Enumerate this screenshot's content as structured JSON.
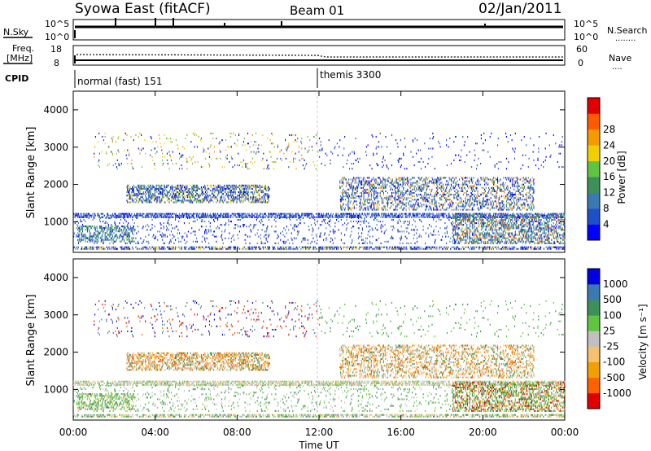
{
  "header": {
    "station": "Syowa East (fitACF)",
    "beam": "Beam 01",
    "date": "02/Jan/2011"
  },
  "strip_panels": {
    "nsky": {
      "label": "N.Sky",
      "ticks": [
        "10^5",
        "10^0"
      ]
    },
    "nsearch": {
      "label": "N.Search",
      "ticks": [
        "10^5",
        "10^0"
      ],
      "legend_line": "........"
    },
    "freq": {
      "label": "Freq.",
      "unit": "[MHz]",
      "ticks": [
        "18",
        "8"
      ]
    },
    "nave": {
      "label": "Nave",
      "ticks": [
        "60",
        "0"
      ],
      "legend_line": "...."
    },
    "cpid": {
      "label": "CPID",
      "modes": [
        "normal (fast) 151",
        "themis 3300"
      ]
    }
  },
  "chart_data": [
    {
      "type": "heatmap",
      "name": "power",
      "ylabel": "Slant Range [km]",
      "y_ticks": [
        "1000",
        "2000",
        "3000",
        "4000"
      ],
      "ylim": [
        180,
        4500
      ],
      "xlim": [
        0,
        24
      ],
      "colorbar": {
        "label": "Power [dB]",
        "ticks": [
          "4",
          "8",
          "12",
          "16",
          "20",
          "24",
          "28"
        ],
        "colors": [
          "#0000ff",
          "#2050c8",
          "#3a7ab0",
          "#3e8f5a",
          "#60c440",
          "#f0d000",
          "#f59a00",
          "#ff5a00",
          "#e00000"
        ]
      },
      "bands": [
        {
          "t0": 0.0,
          "t1": 24.0,
          "r0": 250,
          "r1": 330,
          "density": 0.55,
          "levels": [
            0,
            1,
            2,
            5
          ]
        },
        {
          "t0": 0.0,
          "t1": 24.0,
          "r0": 1100,
          "r1": 1220,
          "density": 0.55,
          "levels": [
            0,
            1,
            2
          ]
        },
        {
          "t0": 2.6,
          "t1": 9.6,
          "r0": 1500,
          "r1": 2000,
          "density": 0.45,
          "levels": [
            0,
            1,
            2,
            3,
            5
          ]
        },
        {
          "t0": 0.2,
          "t1": 3.0,
          "r0": 450,
          "r1": 900,
          "density": 0.35,
          "levels": [
            1,
            2,
            3,
            4
          ]
        },
        {
          "t0": 13.0,
          "t1": 22.5,
          "r0": 1300,
          "r1": 2200,
          "density": 0.3,
          "levels": [
            0,
            1,
            2,
            3,
            6
          ]
        },
        {
          "t0": 18.5,
          "t1": 24.0,
          "r0": 400,
          "r1": 1200,
          "density": 0.35,
          "levels": [
            1,
            2,
            3,
            4,
            7
          ]
        },
        {
          "t0": 1.0,
          "t1": 12.0,
          "r0": 2400,
          "r1": 3400,
          "density": 0.05,
          "levels": [
            0,
            1,
            4,
            5,
            6
          ]
        },
        {
          "t0": 12.0,
          "t1": 24.0,
          "r0": 2400,
          "r1": 3400,
          "density": 0.03,
          "levels": [
            0,
            1
          ]
        },
        {
          "t0": 0.0,
          "t1": 24.0,
          "r0": 400,
          "r1": 1100,
          "density": 0.08,
          "levels": [
            0,
            1,
            2
          ]
        }
      ]
    },
    {
      "type": "heatmap",
      "name": "velocity",
      "ylabel": "Slant Range [km]",
      "xlabel": "Time UT",
      "x_ticks": [
        "00:00",
        "04:00",
        "08:00",
        "12:00",
        "16:00",
        "20:00",
        "00:00"
      ],
      "y_ticks": [
        "1000",
        "2000",
        "3000",
        "4000"
      ],
      "ylim": [
        180,
        4500
      ],
      "xlim": [
        0,
        24
      ],
      "colorbar": {
        "label": "Velocity [m s⁻¹]",
        "ticks": [
          "-1000",
          "-500",
          "-100",
          "-25",
          "25",
          "100",
          "500",
          "1000"
        ],
        "colors": [
          "#e00000",
          "#ff6000",
          "#f0a000",
          "#f5c070",
          "#c0c0c0",
          "#60c440",
          "#3e8f5a",
          "#3a7ab0",
          "#0000e0"
        ]
      },
      "bands": [
        {
          "t0": 0.0,
          "t1": 24.0,
          "r0": 250,
          "r1": 330,
          "density": 0.55,
          "levels": [
            3,
            4,
            5,
            6
          ]
        },
        {
          "t0": 0.0,
          "t1": 24.0,
          "r0": 1100,
          "r1": 1220,
          "density": 0.55,
          "levels": [
            4,
            4,
            3,
            5
          ]
        },
        {
          "t0": 2.6,
          "t1": 9.6,
          "r0": 1500,
          "r1": 2000,
          "density": 0.45,
          "levels": [
            1,
            2,
            3,
            4,
            6
          ]
        },
        {
          "t0": 0.2,
          "t1": 3.0,
          "r0": 450,
          "r1": 900,
          "density": 0.35,
          "levels": [
            5,
            6,
            5,
            3
          ]
        },
        {
          "t0": 13.0,
          "t1": 22.5,
          "r0": 1300,
          "r1": 2200,
          "density": 0.3,
          "levels": [
            1,
            2,
            3,
            4,
            6
          ]
        },
        {
          "t0": 18.5,
          "t1": 24.0,
          "r0": 400,
          "r1": 1200,
          "density": 0.35,
          "levels": [
            5,
            6,
            0,
            2
          ]
        },
        {
          "t0": 1.0,
          "t1": 12.0,
          "r0": 2400,
          "r1": 3400,
          "density": 0.05,
          "levels": [
            0,
            1,
            7,
            8
          ]
        },
        {
          "t0": 12.0,
          "t1": 24.0,
          "r0": 2400,
          "r1": 3400,
          "density": 0.03,
          "levels": [
            5,
            6
          ]
        },
        {
          "t0": 0.0,
          "t1": 24.0,
          "r0": 400,
          "r1": 1100,
          "density": 0.08,
          "levels": [
            4,
            5,
            6
          ]
        }
      ]
    }
  ]
}
